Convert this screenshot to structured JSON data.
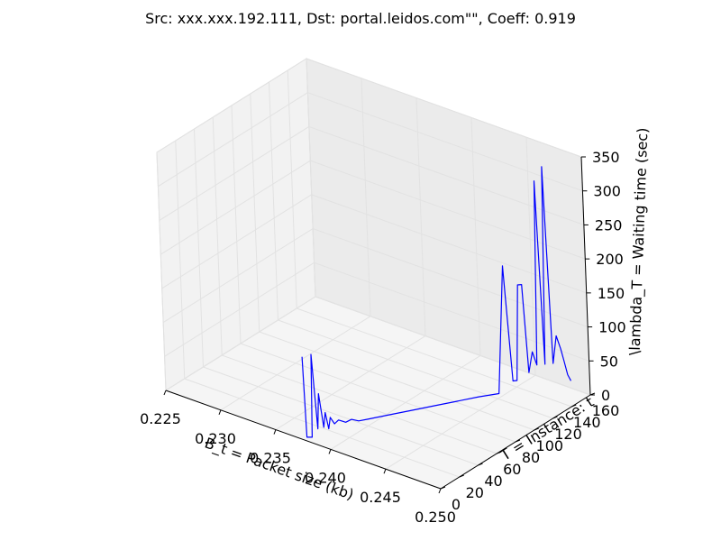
{
  "chart_data": {
    "type": "line3d",
    "title": "Src: xxx.xxx.192.111, Dst: portal.leidos.com\"\", Coeff: 0.919",
    "xlabel": "B_t = Packet size (kb)",
    "ylabel": "T = Instance: t",
    "zlabel": "\\lambda_T = Waiting time (sec)",
    "xlim": [
      0.225,
      0.25
    ],
    "ylim": [
      0,
      160
    ],
    "zlim": [
      0,
      350
    ],
    "x_ticks": [
      "0.225",
      "0.230",
      "0.235",
      "0.240",
      "0.245",
      "0.250"
    ],
    "y_ticks": [
      "0",
      "20",
      "40",
      "60",
      "80",
      "100",
      "120",
      "140",
      "160"
    ],
    "z_ticks": [
      "0",
      "50",
      "100",
      "150",
      "200",
      "250",
      "300",
      "350"
    ],
    "grid": true,
    "line_color": "#0000ff",
    "series": [
      {
        "x": [
          0.2375,
          0.2375,
          0.2378,
          0.2378,
          0.238,
          0.238,
          0.2382,
          0.2382,
          0.2383,
          0.2383,
          0.2385,
          0.2387,
          0.239,
          0.2392,
          0.2395,
          0.24,
          0.241,
          0.242,
          0.243,
          0.244,
          0.245,
          0.246,
          0.2465,
          0.2468,
          0.247,
          0.2472,
          0.2474,
          0.2476,
          0.2478,
          0.248,
          0.2482,
          0.2484,
          0.2486,
          0.2488,
          0.249,
          0.2492,
          0.2493,
          0.2494,
          0.2495
        ],
        "y": [
          2,
          4,
          6,
          8,
          10,
          12,
          14,
          16,
          18,
          20,
          22,
          24,
          28,
          32,
          36,
          40,
          52,
          64,
          76,
          88,
          100,
          110,
          113,
          116,
          118,
          120,
          122,
          124,
          126,
          128,
          130,
          132,
          134,
          136,
          138,
          140,
          142,
          144,
          146
        ],
        "z": [
          120,
          0,
          0,
          120,
          10,
          60,
          10,
          30,
          5,
          20,
          10,
          15,
          10,
          12,
          8,
          10,
          12,
          14,
          16,
          18,
          20,
          22,
          210,
          40,
          40,
          180,
          180,
          50,
          80,
          60,
          330,
          60,
          350,
          60,
          100,
          80,
          60,
          40,
          30
        ]
      }
    ]
  }
}
